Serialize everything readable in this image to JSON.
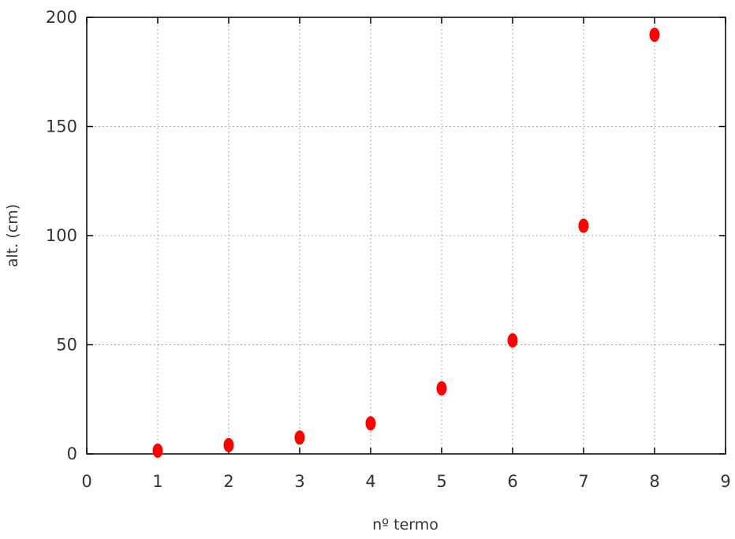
{
  "chart_data": {
    "type": "scatter",
    "title": "",
    "xlabel": "nº termo",
    "ylabel": "alt. (cm)",
    "xlim": [
      0,
      9
    ],
    "ylim": [
      0,
      200
    ],
    "x_ticks": [
      0,
      1,
      2,
      3,
      4,
      5,
      6,
      7,
      8,
      9
    ],
    "y_ticks": [
      0,
      50,
      100,
      150,
      200
    ],
    "grid": true,
    "legend": "none",
    "series": [
      {
        "color": "#ff0000",
        "marker": "circle",
        "points": [
          {
            "x": 1,
            "y": 1.5
          },
          {
            "x": 2,
            "y": 4
          },
          {
            "x": 3,
            "y": 7.5
          },
          {
            "x": 4,
            "y": 14
          },
          {
            "x": 5,
            "y": 30
          },
          {
            "x": 6,
            "y": 52
          },
          {
            "x": 7,
            "y": 104.5
          },
          {
            "x": 8,
            "y": 192
          }
        ]
      }
    ]
  }
}
